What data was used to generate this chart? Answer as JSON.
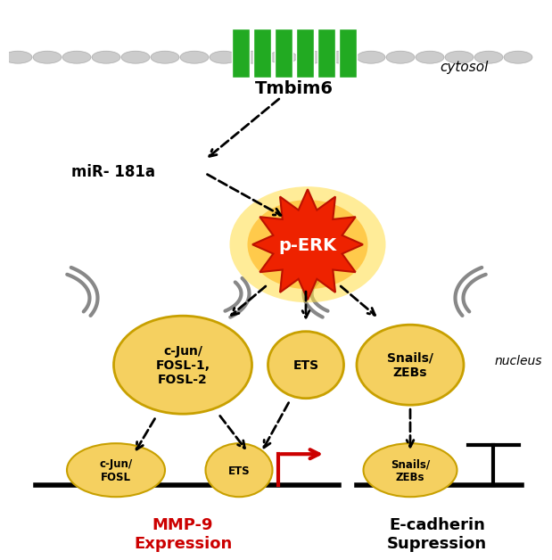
{
  "background_color": "#ffffff",
  "green_rect_color": "#22aa22",
  "tmbim6_label": "Tmbim6",
  "cytosol_label": "cytosol",
  "nucleus_label": "nucleus",
  "mir_label": "miR- 181a",
  "perk_label": "p-ERK",
  "node1_label": "c-Jun/\nFOSL-1,\nFOSL-2",
  "node2_label": "ETS",
  "node3_label": "Snails/\nZEBs",
  "bottom1_label": "c-Jun/\nFOSL",
  "bottom2_label": "ETS",
  "bottom3_label": "Snails/\nZEBs",
  "mmp9_label": "MMP-9\nExpression",
  "ecadherin_label": "E-cadherin\nSupression",
  "ellipse_color": "#f5d060",
  "mmp9_color": "#cc0000",
  "ecadherin_color": "#000000"
}
